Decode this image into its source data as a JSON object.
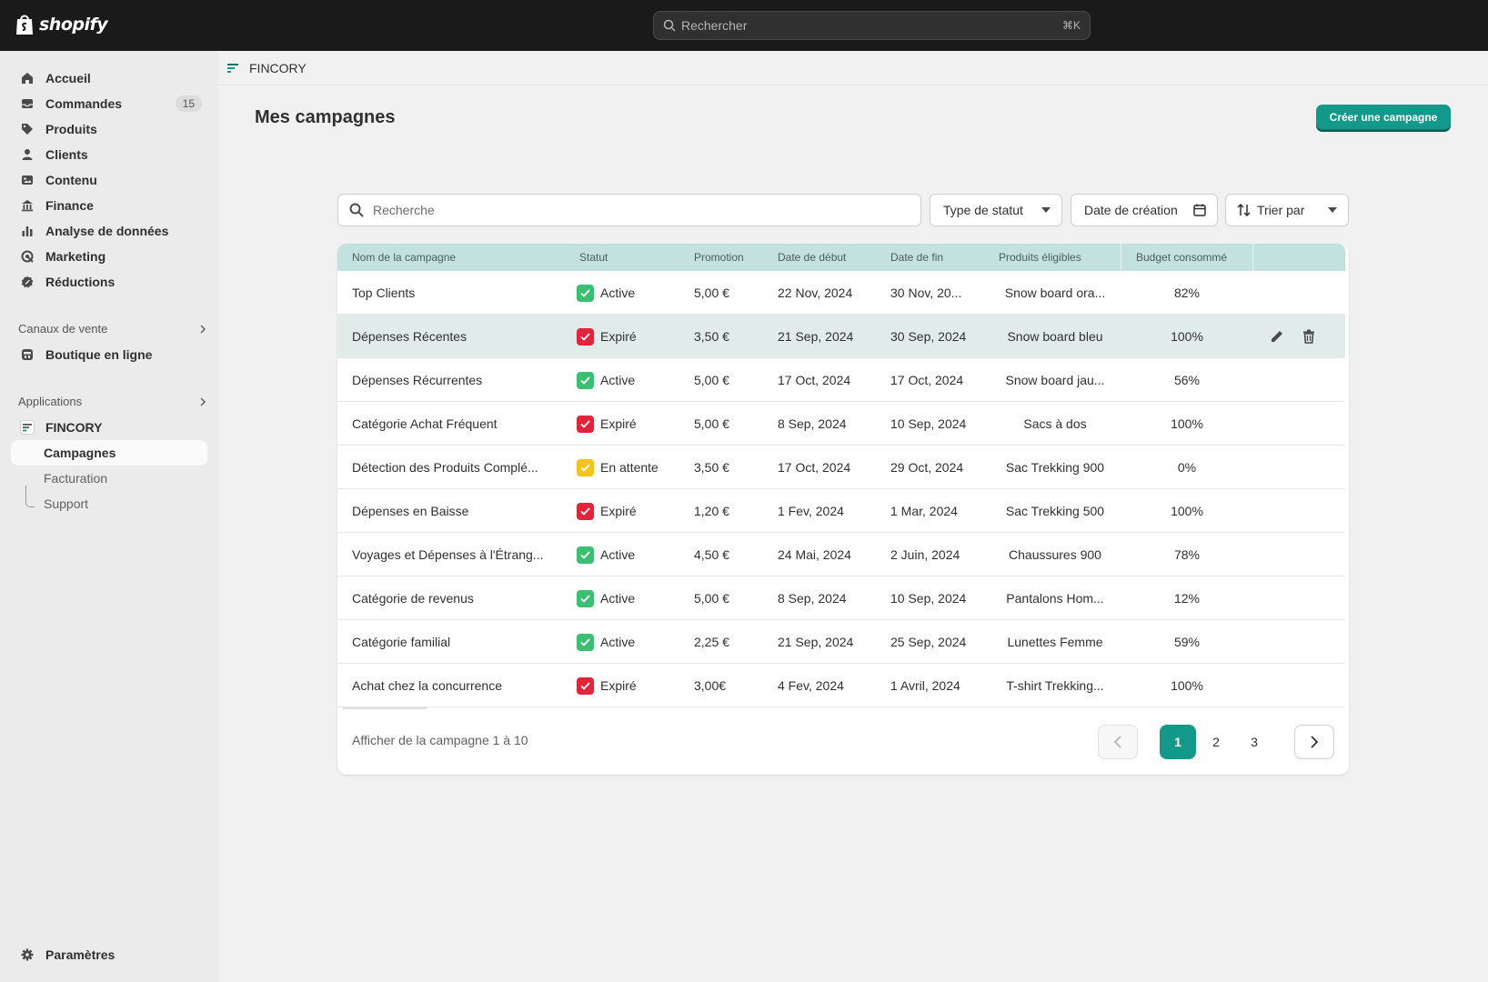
{
  "topbar": {
    "brand": "shopify",
    "search_placeholder": "Rechercher",
    "search_shortcut": "⌘K"
  },
  "sidebar": {
    "main_items": [
      {
        "label": "Accueil",
        "icon": "home-icon"
      },
      {
        "label": "Commandes",
        "icon": "inbox-icon",
        "badge": "15"
      },
      {
        "label": "Produits",
        "icon": "tag-icon"
      },
      {
        "label": "Clients",
        "icon": "person-icon"
      },
      {
        "label": "Contenu",
        "icon": "image-icon"
      },
      {
        "label": "Finance",
        "icon": "bank-icon"
      },
      {
        "label": "Analyse de données",
        "icon": "bar-chart-icon"
      },
      {
        "label": "Marketing",
        "icon": "target-icon"
      },
      {
        "label": "Réductions",
        "icon": "discount-icon"
      }
    ],
    "sales_channels_title": "Canaux de vente",
    "online_store": "Boutique en ligne",
    "apps_title": "Applications",
    "app_name": "FINCORY",
    "app_subitems": [
      "Campagnes",
      "Facturation",
      "Support"
    ],
    "settings": "Paramètres"
  },
  "appbar": {
    "title": "FINCORY"
  },
  "page": {
    "title": "Mes campagnes",
    "create_button": "Créer une campagne"
  },
  "filters": {
    "search_placeholder": "Recherche",
    "status_type": "Type de statut",
    "creation_date": "Date de création",
    "sort_by": "Trier par"
  },
  "table": {
    "headers": [
      "Nom de la campagne",
      "Statut",
      "Promotion",
      "Date de début",
      "Date de fin",
      "Produits éligibles",
      "Budget consommé"
    ],
    "rows": [
      {
        "name": "Top Clients",
        "status": "Active",
        "status_kind": "active",
        "promo": "5,00 €",
        "start": "22 Nov, 2024",
        "end": "30 Nov, 20...",
        "products": "Snow board ora...",
        "budget": "82%"
      },
      {
        "name": "Dépenses Récentes",
        "status": "Expiré",
        "status_kind": "expired",
        "promo": "3,50 €",
        "start": "21 Sep, 2024",
        "end": "30 Sep, 2024",
        "products": "Snow board bleu",
        "budget": "100%"
      },
      {
        "name": "Dépenses Récurrentes",
        "status": "Active",
        "status_kind": "active",
        "promo": "5,00 €",
        "start": "17 Oct, 2024",
        "end": "17 Oct, 2024",
        "products": "Snow board jau...",
        "budget": "56%"
      },
      {
        "name": "Catégorie Achat Fréquent",
        "status": "Expiré",
        "status_kind": "expired",
        "promo": "5,00 €",
        "start": "8 Sep, 2024",
        "end": "10 Sep, 2024",
        "products": "Sacs à dos",
        "budget": "100%"
      },
      {
        "name": "Détection des Produits Complé...",
        "status": "En attente",
        "status_kind": "pending",
        "promo": "3,50 €",
        "start": "17 Oct, 2024",
        "end": "29 Oct, 2024",
        "products": "Sac Trekking 900",
        "budget": "0%"
      },
      {
        "name": "Dépenses en Baisse",
        "status": "Expiré",
        "status_kind": "expired",
        "promo": "1,20 €",
        "start": "1 Fev, 2024",
        "end": "1 Mar, 2024",
        "products": "Sac Trekking 500",
        "budget": "100%"
      },
      {
        "name": "Voyages et Dépenses à l'Étrang...",
        "status": "Active",
        "status_kind": "active",
        "promo": "4,50 €",
        "start": "24 Mai, 2024",
        "end": "2 Juin, 2024",
        "products": "Chaussures 900",
        "budget": "78%"
      },
      {
        "name": "Catégorie de revenus",
        "status": "Active",
        "status_kind": "active",
        "promo": "5,00 €",
        "start": "8 Sep, 2024",
        "end": "10 Sep, 2024",
        "products": "Pantalons Hom...",
        "budget": "12%"
      },
      {
        "name": "Catégorie familial",
        "status": "Active",
        "status_kind": "active",
        "promo": "2,25 €",
        "start": "21 Sep, 2024",
        "end": "25 Sep, 2024",
        "products": "Lunettes Femme",
        "budget": "59%"
      },
      {
        "name": "Achat chez la concurrence",
        "status": "Expiré",
        "status_kind": "expired",
        "promo": "3,00€",
        "start": "4 Fev, 2024",
        "end": "1 Avril, 2024",
        "products": "T-shirt Trekking...",
        "budget": "100%"
      }
    ],
    "footer": "Afficher de la campagne 1 à 10",
    "pages": [
      "1",
      "2",
      "3"
    ],
    "current_page": "1"
  },
  "colors": {
    "accent": "#12998a",
    "header_bg": "#c4e2dd",
    "active": "#3dbf73",
    "expired": "#e0243c",
    "pending": "#f5c31e"
  }
}
